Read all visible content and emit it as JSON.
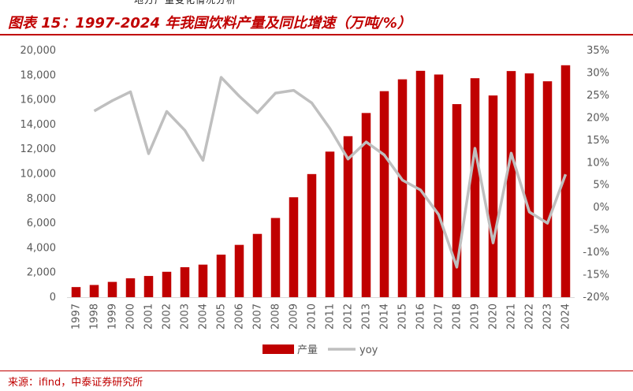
{
  "header": {
    "top_fragment": "地方产量变化情况分析"
  },
  "title": "图表 15：1997-2024 年我国饮料产量及同比增速（万吨/%）",
  "source": "来源：ifind，中泰证券研究所",
  "chart_data": {
    "type": "bar",
    "categories": [
      "1997",
      "1998",
      "1999",
      "2000",
      "2001",
      "2002",
      "2003",
      "2004",
      "2005",
      "2006",
      "2007",
      "2008",
      "2009",
      "2010",
      "2011",
      "2012",
      "2013",
      "2014",
      "2015",
      "2016",
      "2017",
      "2018",
      "2019",
      "2020",
      "2021",
      "2022",
      "2023",
      "2024"
    ],
    "series": [
      {
        "name": "产量",
        "type": "bar",
        "axis": "left",
        "color": "#c00000",
        "values": [
          820,
          990,
          1240,
          1530,
          1720,
          2060,
          2430,
          2640,
          3450,
          4240,
          5130,
          6420,
          8100,
          9980,
          11800,
          13050,
          14930,
          16700,
          17660,
          18350,
          18050,
          15650,
          17750,
          16350,
          18330,
          18140,
          17500,
          18800
        ]
      },
      {
        "name": "yoy",
        "type": "line",
        "axis": "right",
        "color": "#bfbfbf",
        "values": [
          null,
          21.5,
          23.8,
          25.8,
          12.0,
          21.4,
          17.2,
          10.5,
          29.0,
          24.8,
          21.1,
          25.5,
          26.1,
          23.3,
          17.6,
          10.8,
          14.6,
          11.7,
          6.1,
          3.9,
          -1.6,
          -13.3,
          13.2,
          -7.9,
          12.1,
          -1.0,
          -3.5,
          7.4
        ]
      }
    ],
    "y_left": {
      "ylim": [
        0,
        20000
      ],
      "ticks": [
        0,
        2000,
        4000,
        6000,
        8000,
        10000,
        12000,
        14000,
        16000,
        18000,
        20000
      ],
      "tick_labels": [
        "0",
        "2,000",
        "4,000",
        "6,000",
        "8,000",
        "10,000",
        "12,000",
        "14,000",
        "16,000",
        "18,000",
        "20,000"
      ]
    },
    "y_right": {
      "ylim": [
        -20,
        35
      ],
      "ticks": [
        -20,
        -15,
        -10,
        -5,
        0,
        5,
        10,
        15,
        20,
        25,
        30,
        35
      ],
      "tick_labels": [
        "-20%",
        "-15%",
        "-10%",
        "-5%",
        "0%",
        "5%",
        "10%",
        "15%",
        "20%",
        "25%",
        "30%",
        "35%"
      ]
    },
    "grid": false,
    "legend": {
      "placement": "bottom",
      "entries": [
        "产量",
        "yoy"
      ]
    }
  }
}
